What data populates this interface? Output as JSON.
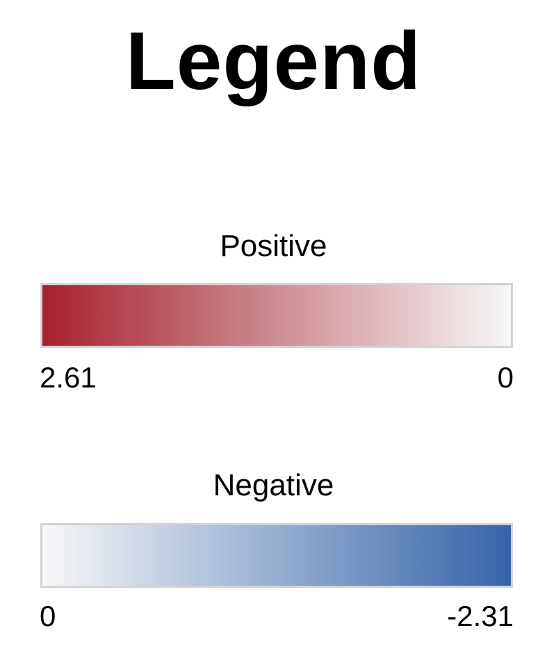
{
  "title": "Legend",
  "positive": {
    "label": "Positive",
    "start_value": "2.61",
    "end_value": "0",
    "start_color": "#a6212f",
    "end_color": "#f7f7f7"
  },
  "negative": {
    "label": "Negative",
    "start_value": "0",
    "end_value": "-2.31",
    "start_color": "#f7f7f7",
    "end_color": "#3564aa"
  }
}
